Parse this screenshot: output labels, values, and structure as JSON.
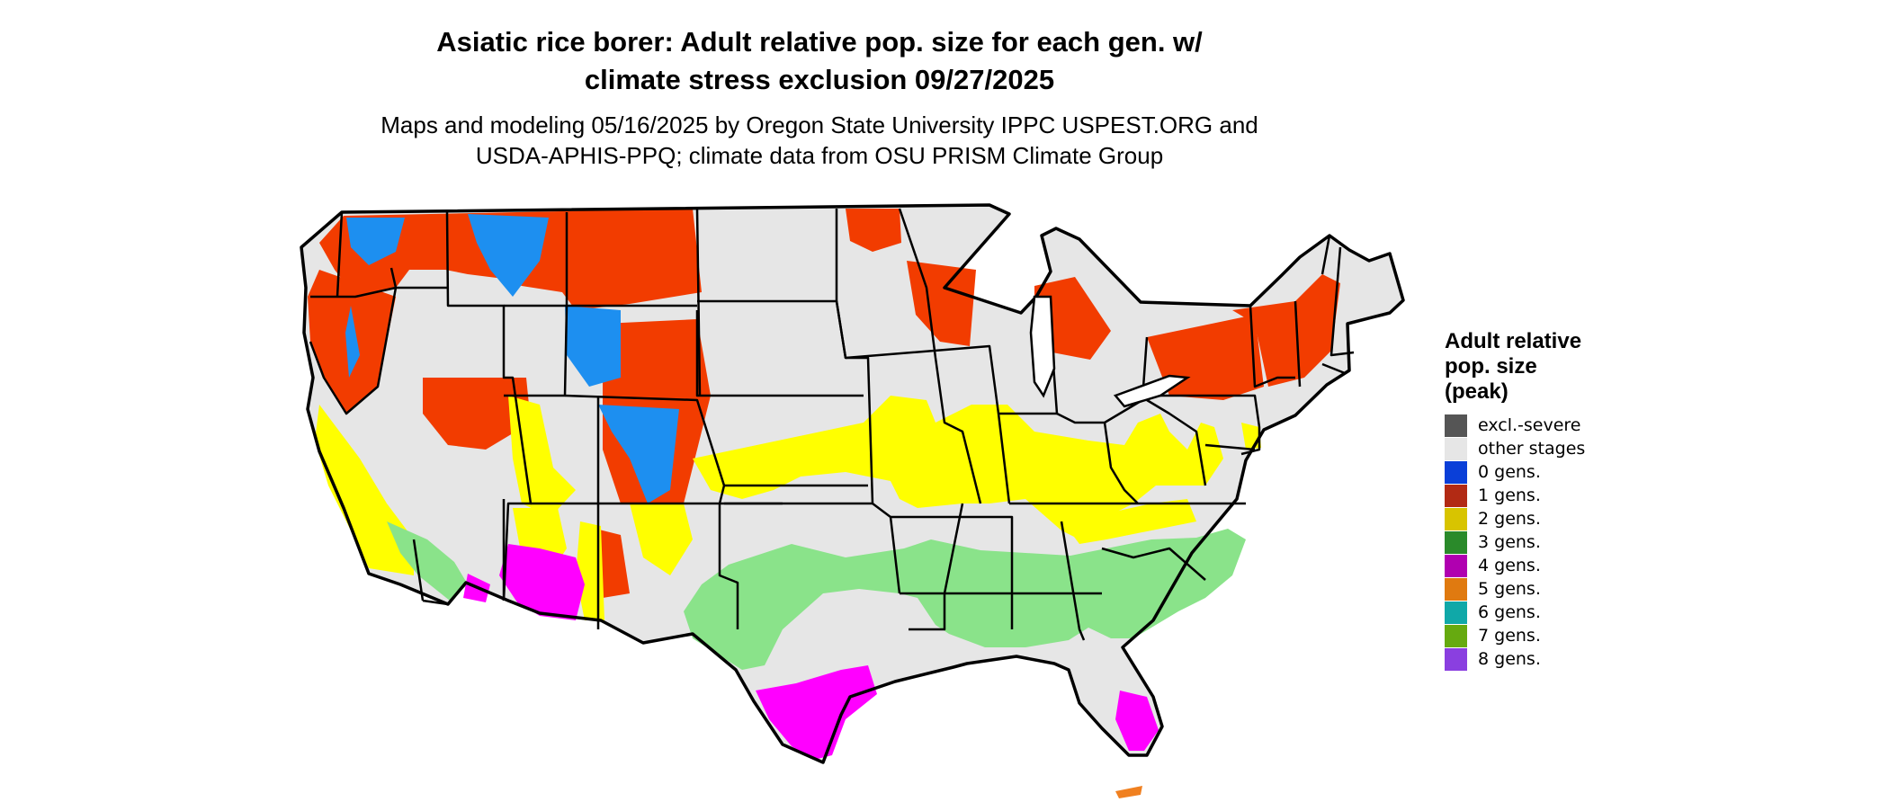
{
  "title_lines": [
    "Asiatic rice borer: Adult relative pop. size for each gen. w/",
    "climate stress exclusion 09/27/2025"
  ],
  "subtitle_lines": [
    "Maps and modeling 05/16/2025 by Oregon State University IPPC USPEST.ORG and",
    "USDA-APHIS-PPQ; climate data from OSU PRISM Climate Group"
  ],
  "legend": {
    "title_lines": [
      "Adult relative",
      "pop. size",
      "(peak)"
    ],
    "items": [
      {
        "label": "excl.-severe",
        "color": "#555555"
      },
      {
        "label": "other stages",
        "color": "#e6e6e6"
      },
      {
        "label": "0 gens.",
        "color": "#0a3fd8"
      },
      {
        "label": "1 gens.",
        "color": "#b22a14"
      },
      {
        "label": "2 gens.",
        "color": "#d8c400"
      },
      {
        "label": "3 gens.",
        "color": "#2a8a2a"
      },
      {
        "label": "4 gens.",
        "color": "#b000b0"
      },
      {
        "label": "5 gens.",
        "color": "#e07a10"
      },
      {
        "label": "6 gens.",
        "color": "#10a8a8"
      },
      {
        "label": "7 gens.",
        "color": "#66aa10"
      },
      {
        "label": "8 gens.",
        "color": "#8a3fe0"
      }
    ]
  },
  "map_colors": {
    "land": "#e6e6e6",
    "boundary": "#000000",
    "one_gen_map": "#f23c00",
    "two_gen_map": "#ffff00",
    "three_gen_map": "#8ae38a",
    "four_gen_map": "#ff00ff",
    "cold_map": "#1d8ff0",
    "five_gen_map": "#f08020"
  }
}
